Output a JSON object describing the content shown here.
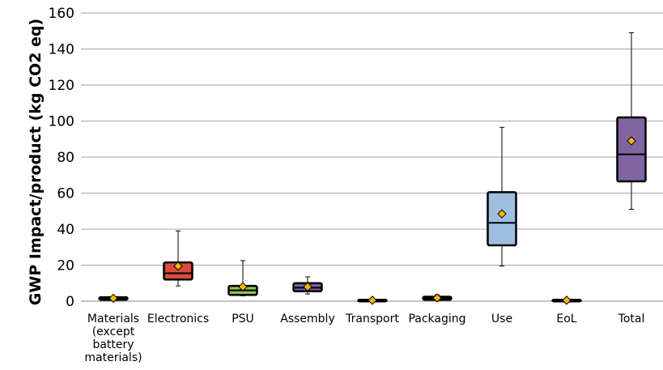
{
  "chart_data": {
    "type": "boxplot",
    "ylabel": "GWP Impact/product (kg CO2 eq)",
    "ylim": [
      0,
      160
    ],
    "yticks": [
      "0",
      "20",
      "40",
      "60",
      "80",
      "100",
      "120",
      "140",
      "160"
    ],
    "grid": true,
    "categories": [
      "Materials\n(except\nbattery\nmaterials)",
      "Electronics",
      "PSU",
      "Assembly",
      "Transport",
      "Packaging",
      "Use",
      "EoL",
      "Total"
    ],
    "boxes": [
      {
        "min": 0.5,
        "q1": 0.8,
        "median": 1.4,
        "q3": 2.2,
        "max": 2.6,
        "mean": 1.6,
        "color": "#000000"
      },
      {
        "min": 8.5,
        "q1": 12,
        "median": 15.5,
        "q3": 21.5,
        "max": 39,
        "mean": 19.5,
        "color": "#d94b3c"
      },
      {
        "min": 3,
        "q1": 3.5,
        "median": 6,
        "q3": 8.5,
        "max": 22.5,
        "mean": 8,
        "color": "#92c050"
      },
      {
        "min": 4,
        "q1": 5.5,
        "median": 7.5,
        "q3": 10,
        "max": 13.5,
        "mean": 8,
        "color": "#7b5aa6"
      },
      {
        "min": 0.2,
        "q1": 0.3,
        "median": 0.5,
        "q3": 0.8,
        "max": 1.0,
        "mean": 0.5,
        "color": "#000000"
      },
      {
        "min": 0.5,
        "q1": 0.8,
        "median": 1.5,
        "q3": 2.5,
        "max": 3.5,
        "mean": 1.8,
        "color": "#000000"
      },
      {
        "min": 19.5,
        "q1": 31,
        "median": 43.5,
        "q3": 60.5,
        "max": 96.5,
        "mean": 48.5,
        "color": "#9ebfe0"
      },
      {
        "min": 0.2,
        "q1": 0.3,
        "median": 0.5,
        "q3": 0.8,
        "max": 1.0,
        "mean": 0.5,
        "color": "#000000"
      },
      {
        "min": 51,
        "q1": 66.5,
        "median": 81.5,
        "q3": 102,
        "max": 149,
        "mean": 89,
        "color": "#8064a2"
      }
    ],
    "mean_marker_color": "#f5b800"
  }
}
